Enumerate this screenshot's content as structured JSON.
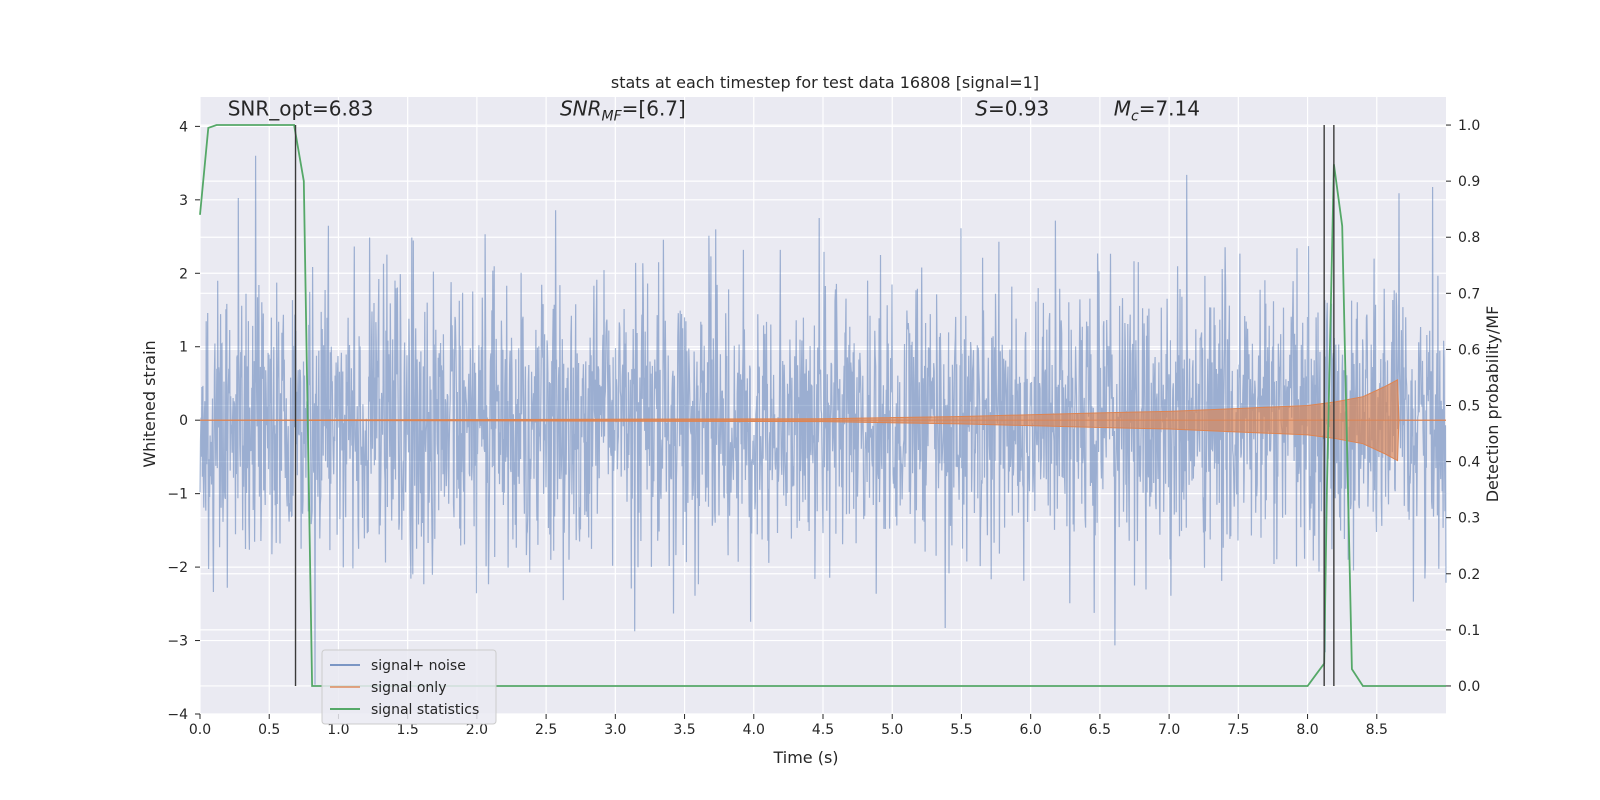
{
  "chart_data": {
    "type": "line",
    "title": "stats at each timestep for test data 16808 [signal=1]",
    "xlabel": "Time (s)",
    "ylabel": "Whitened strain",
    "ylabel_right": "Detection probability/MF",
    "xlim": [
      0,
      9.0
    ],
    "ylim": [
      -4.0,
      4.4
    ],
    "ylim_right": [
      -0.05,
      1.05
    ],
    "x_ticks": [
      "0.0",
      "0.5",
      "1.0",
      "1.5",
      "2.0",
      "2.5",
      "3.0",
      "3.5",
      "4.0",
      "4.5",
      "5.0",
      "5.5",
      "6.0",
      "6.5",
      "7.0",
      "7.5",
      "8.0",
      "8.5"
    ],
    "y_ticks": [
      "4",
      "3",
      "2",
      "1",
      "0",
      "−1",
      "−2",
      "−3",
      "−4"
    ],
    "y_right_ticks": [
      "1.0",
      "0.9",
      "0.8",
      "0.7",
      "0.6",
      "0.5",
      "0.4",
      "0.3",
      "0.2",
      "0.1",
      "0.0"
    ],
    "grid": true,
    "legend_position": "lower-left",
    "annotations": [
      {
        "text": "SNR_opt=6.83",
        "x": 0.2,
        "y": 4.2
      },
      {
        "text": "SNR_MF=[6.7]",
        "x": 2.6,
        "y": 4.2
      },
      {
        "text": "S=0.93",
        "x": 5.6,
        "y": 4.2
      },
      {
        "text": "M_c=7.14",
        "x": 6.6,
        "y": 4.2
      }
    ],
    "vertical_lines": [
      0.69,
      8.12,
      8.19
    ],
    "series": [
      {
        "name": "signal+ noise",
        "color": "#4c72b0",
        "axis": "left",
        "description": "dense whitened noise, amplitude roughly ±2 with spikes to ±3.5",
        "envelope_amplitude": 2.0
      },
      {
        "name": "signal only",
        "color": "#dd8452",
        "axis": "left",
        "description": "chirp signal growing in amplitude, ending near t=8.65",
        "x": [
          0.0,
          4.5,
          5.5,
          6.5,
          7.0,
          7.5,
          8.0,
          8.2,
          8.4,
          8.55,
          8.65,
          8.66,
          9.0
        ],
        "amplitude": [
          0.0,
          0.02,
          0.05,
          0.1,
          0.12,
          0.16,
          0.2,
          0.25,
          0.32,
          0.45,
          0.55,
          0.0,
          0.0
        ]
      },
      {
        "name": "signal statistics",
        "color": "#55a868",
        "axis": "right",
        "x": [
          0.0,
          0.06,
          0.12,
          0.5,
          0.68,
          0.75,
          0.81,
          1.0,
          6.0,
          8.0,
          8.06,
          8.12,
          8.14,
          8.19,
          8.25,
          8.32,
          8.4,
          9.0
        ],
        "y": [
          0.84,
          0.995,
          1.0,
          1.0,
          1.0,
          0.9,
          0.0,
          0.0,
          0.0,
          0.0,
          0.02,
          0.04,
          0.35,
          0.93,
          0.82,
          0.03,
          0.0,
          0.0
        ]
      }
    ]
  }
}
